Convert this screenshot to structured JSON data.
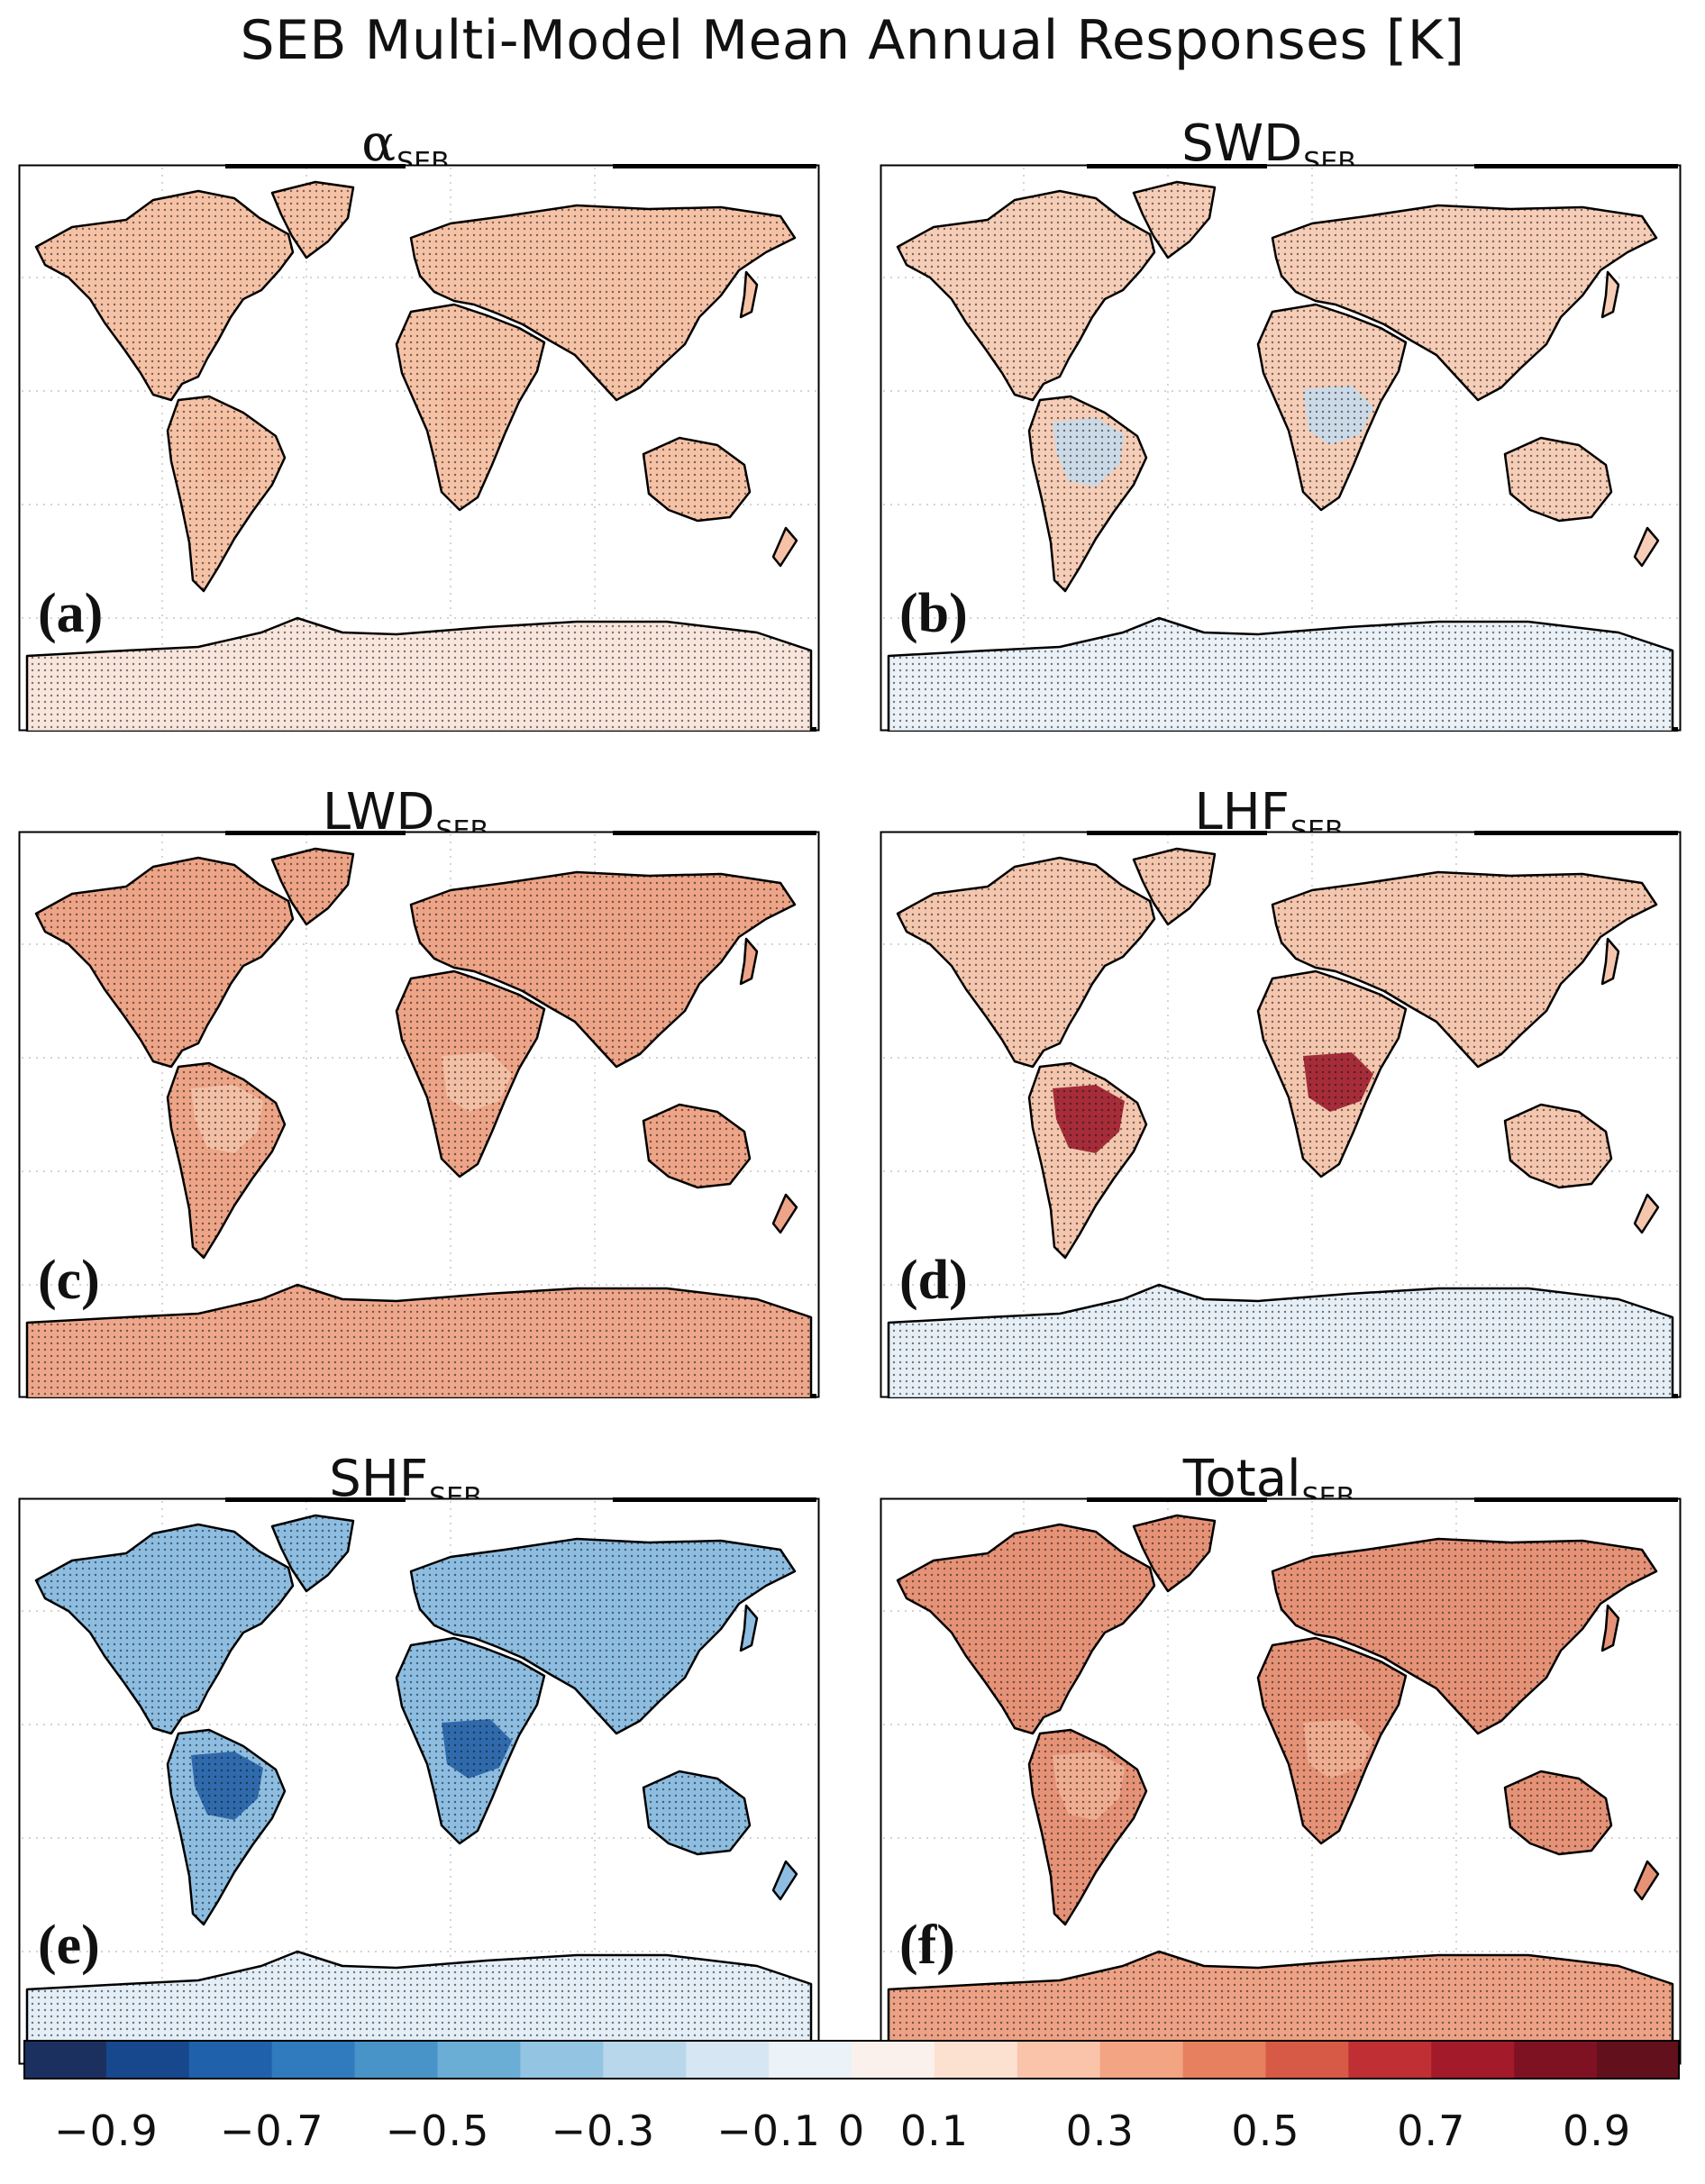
{
  "title": "SEB Multi-Model Mean Annual Responses [K]",
  "panels": [
    {
      "id": "a",
      "title_main": "α",
      "title_sub": "SEB",
      "letter": "(a)"
    },
    {
      "id": "b",
      "title_main": "SWD",
      "title_sub": "SEB",
      "letter": "(b)"
    },
    {
      "id": "c",
      "title_main": "LWD",
      "title_sub": "SEB",
      "letter": "(c)"
    },
    {
      "id": "d",
      "title_main": "LHF",
      "title_sub": "SEB",
      "letter": "(d)"
    },
    {
      "id": "e",
      "title_main": "SHF",
      "title_sub": "SEB",
      "letter": "(e)"
    },
    {
      "id": "f",
      "title_main": "Total",
      "title_sub": "SEB",
      "letter": "(f)"
    }
  ],
  "colorbar": {
    "labels": [
      "−0.9",
      "−0.7",
      "−0.5",
      "−0.3",
      "−0.1",
      "0",
      "0.1",
      "0.3",
      "0.5",
      "0.7",
      "0.9"
    ],
    "colors": [
      "#1c3060",
      "#17478c",
      "#1f62ab",
      "#2f7bbd",
      "#4894c8",
      "#6aaed6",
      "#93c4e2",
      "#b8d7eb",
      "#d6e6f2",
      "#ebf2f8",
      "#fbf1ec",
      "#fce0d0",
      "#f9c4a9",
      "#f3a482",
      "#e6805f",
      "#d65a46",
      "#bf2f33",
      "#a31b2b",
      "#7f1222",
      "#62101c"
    ],
    "boundaries": [
      -1.0,
      -0.9,
      -0.8,
      -0.7,
      -0.6,
      -0.5,
      -0.4,
      -0.3,
      -0.2,
      -0.1,
      0,
      0.1,
      0.2,
      0.3,
      0.4,
      0.5,
      0.6,
      0.7,
      0.8,
      0.9,
      1.0
    ]
  },
  "panel_fills": {
    "a": {
      "land": "#f6c2a6",
      "tropics": "#f5bda0",
      "antarctica": "#f8e6dd"
    },
    "b": {
      "land": "#f6cdb7",
      "tropics": "#c8dcec",
      "antarctica": "#eaf1f7"
    },
    "c": {
      "land": "#eda487",
      "tropics": "#f3c2a8",
      "antarctica": "#eea78b"
    },
    "d": {
      "land": "#f4c6ae",
      "tropics": "#9c1b2b",
      "antarctica": "#e6eff6"
    },
    "e": {
      "land": "#8dbde0",
      "tropics": "#2561a6",
      "antarctica": "#e4eef6"
    },
    "f": {
      "land": "#e59277",
      "tropics": "#f0b093",
      "antarctica": "#eda285"
    }
  }
}
